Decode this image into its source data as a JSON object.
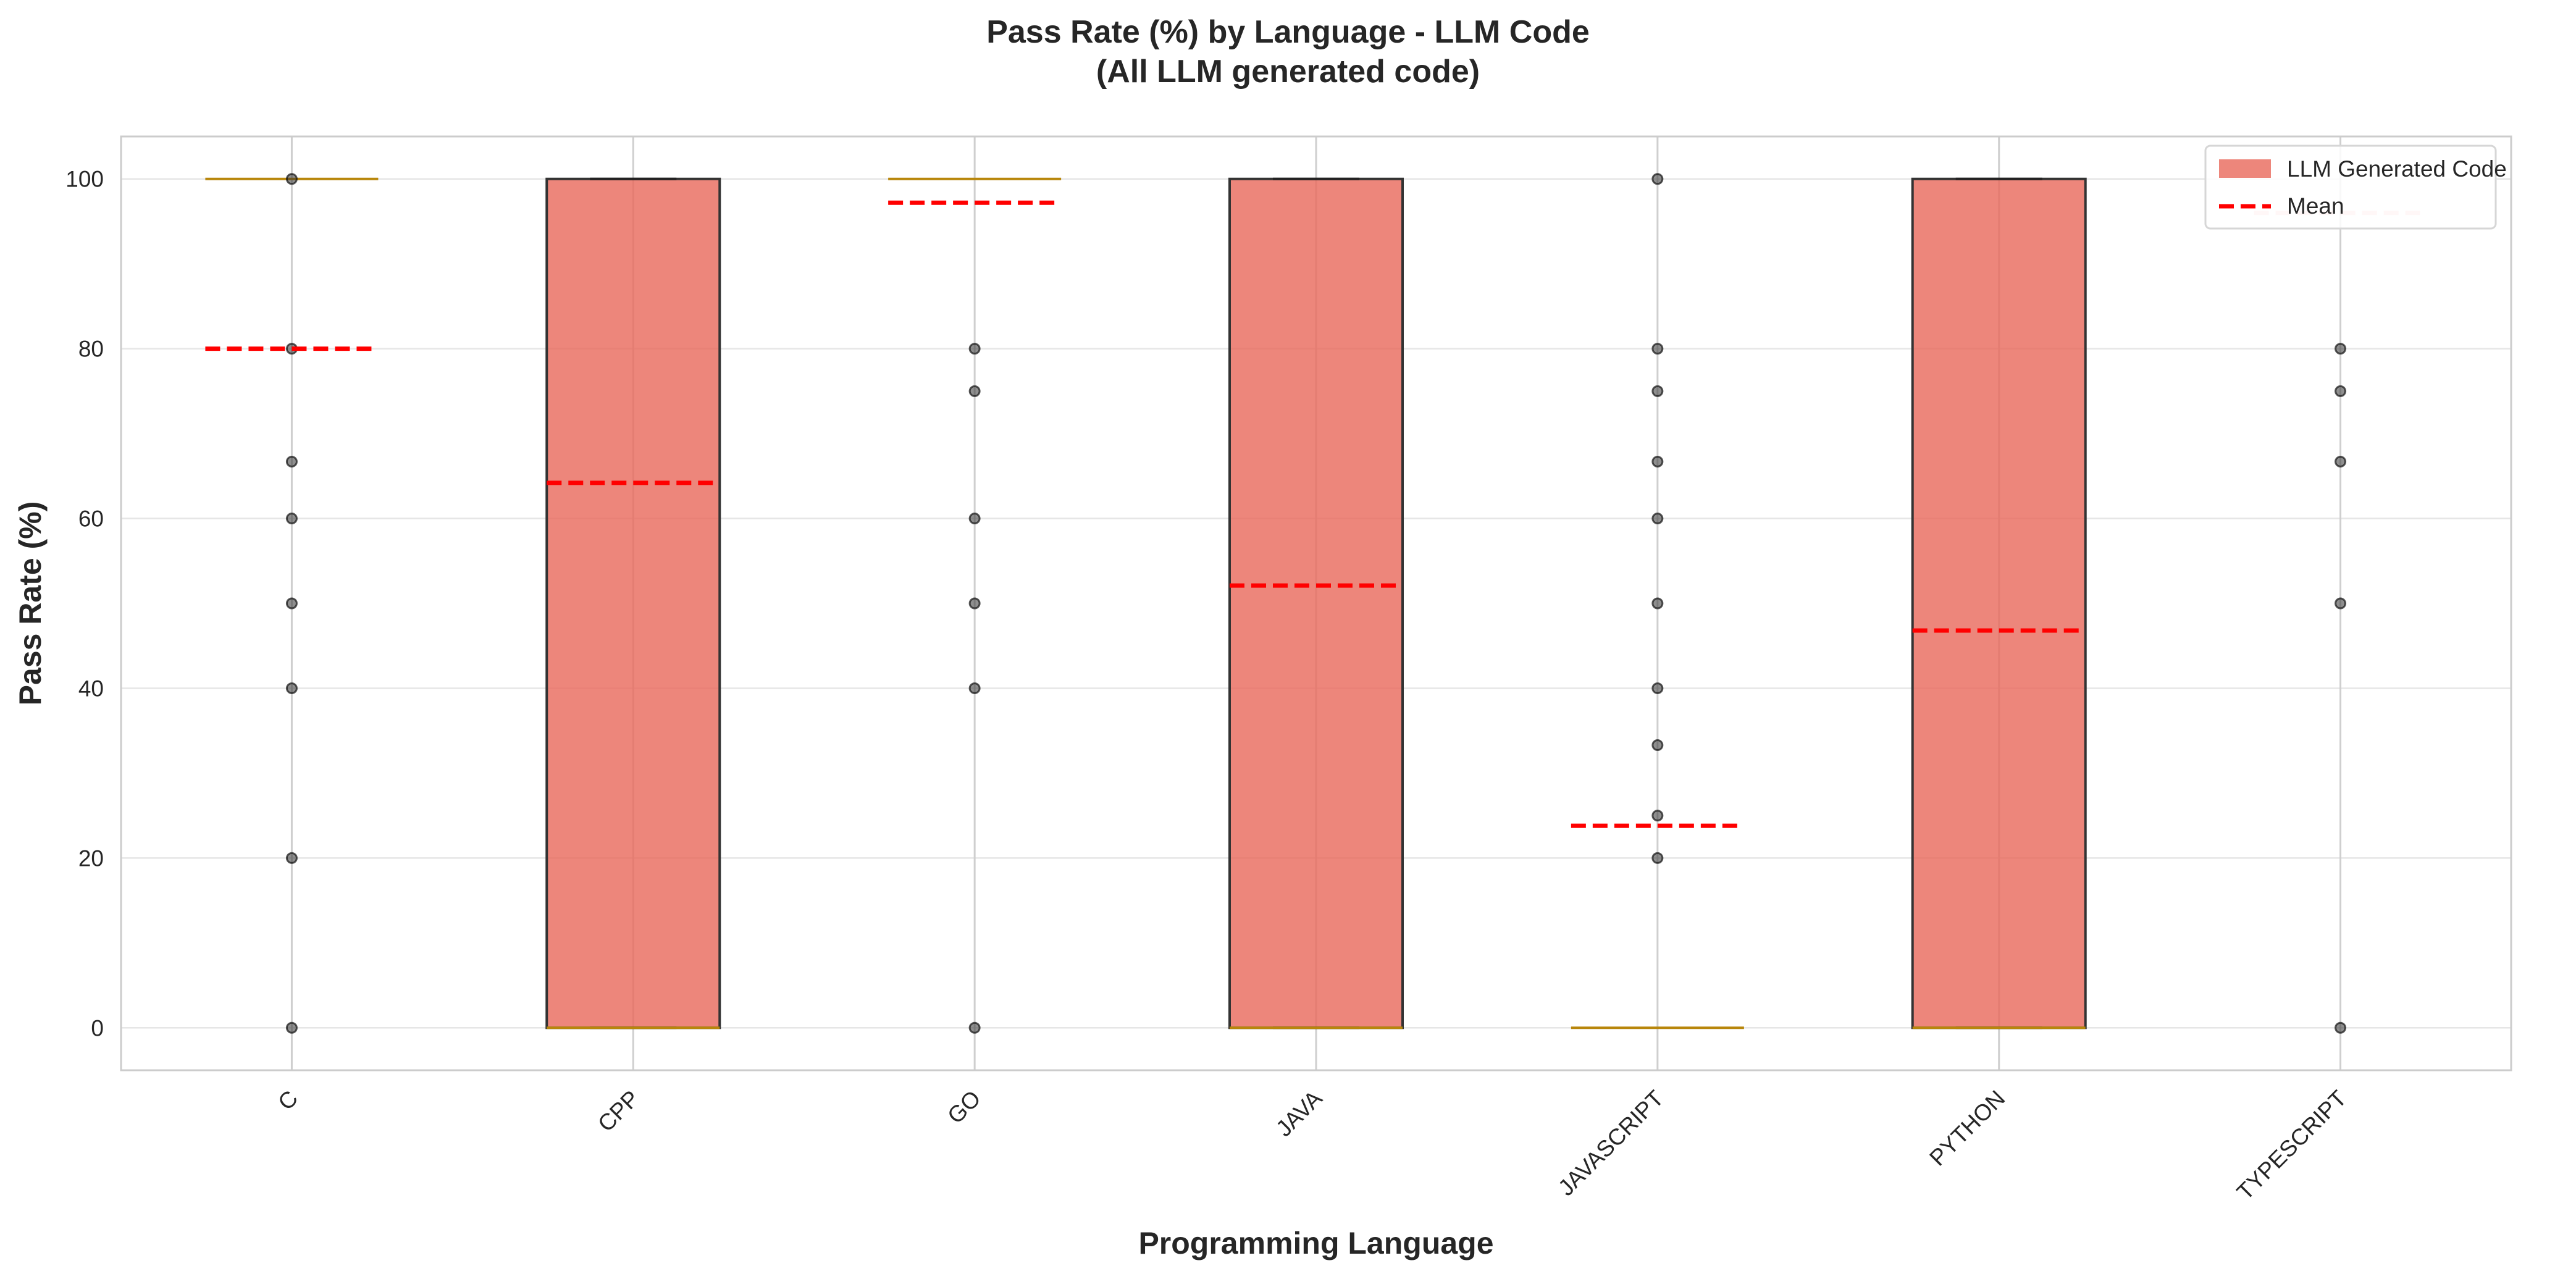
{
  "chart_data": {
    "type": "box",
    "title": "Pass Rate (%) by Language - LLM Code",
    "subtitle": "(All LLM generated code)",
    "xlabel": "Programming Language",
    "ylabel": "Pass Rate (%)",
    "ylim": [
      -5,
      105
    ],
    "yticks": [
      0,
      20,
      40,
      60,
      80,
      100
    ],
    "grid": true,
    "legend": {
      "placement": "top-right",
      "entries": [
        "LLM Generated Code",
        "Mean"
      ]
    },
    "categories": [
      "C",
      "CPP",
      "GO",
      "JAVA",
      "JAVASCRIPT",
      "PYTHON",
      "TYPESCRIPT"
    ],
    "boxes": [
      {
        "category": "C",
        "q1": 100,
        "median": 100,
        "q3": 100,
        "mean": 80,
        "points": [
          100,
          80,
          66.7,
          60,
          50,
          40,
          20,
          0
        ]
      },
      {
        "category": "CPP",
        "q1": 0,
        "median": 0,
        "q3": 100,
        "mean": 64.2,
        "points": []
      },
      {
        "category": "GO",
        "q1": 100,
        "median": 100,
        "q3": 100,
        "mean": 97.2,
        "points": [
          80,
          75,
          60,
          50,
          40,
          0
        ]
      },
      {
        "category": "JAVA",
        "q1": 0,
        "median": 0,
        "q3": 100,
        "mean": 52.1,
        "points": []
      },
      {
        "category": "JAVASCRIPT",
        "q1": 0,
        "median": 0,
        "q3": 0,
        "mean": 23.8,
        "points": [
          100,
          80,
          75,
          66.7,
          60,
          50,
          40,
          33.3,
          25,
          20
        ]
      },
      {
        "category": "PYTHON",
        "q1": 0,
        "median": 0,
        "q3": 100,
        "mean": 46.8,
        "points": []
      },
      {
        "category": "TYPESCRIPT",
        "q1": null,
        "median": null,
        "q3": null,
        "mean": 96,
        "points": [
          80,
          75,
          66.7,
          50,
          0
        ]
      }
    ],
    "colors": {
      "box_fill": "#e8685a",
      "box_edge": "#333333",
      "mean_line": "#ff0000",
      "median_line": "#b8860b",
      "points": "#333333",
      "grid": "#e6e6e6",
      "axes_edge": "#cccccc"
    }
  }
}
